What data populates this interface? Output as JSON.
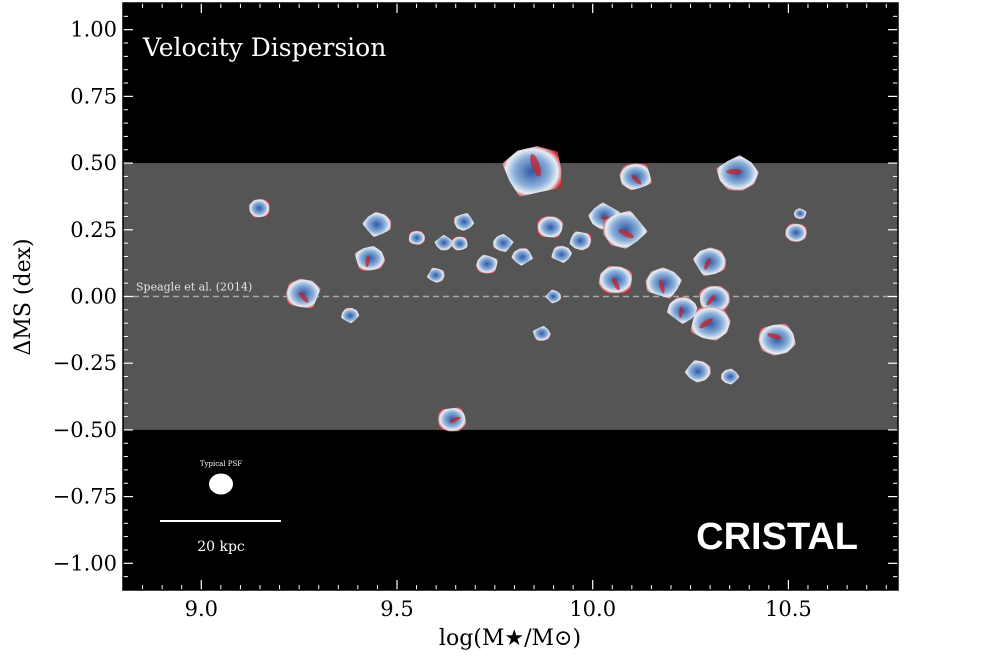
{
  "chart_data": {
    "type": "scatter",
    "title": "Velocity Dispersion",
    "xlabel": "log(M★/M⊙)",
    "ylabel": "ΔMS (dex)",
    "xlim": [
      8.8,
      10.78
    ],
    "ylim": [
      -1.1,
      1.1
    ],
    "xticks": [
      9.0,
      9.5,
      10.0,
      10.5
    ],
    "xtick_labels": [
      "9.0",
      "9.5",
      "10.0",
      "10.5"
    ],
    "yticks": [
      1.0,
      0.75,
      0.5,
      0.25,
      0.0,
      -0.25,
      -0.5,
      -0.75,
      -1.0
    ],
    "ytick_labels": [
      "1.00",
      "0.75",
      "0.50",
      "0.25",
      "0.00",
      "−0.25",
      "−0.50",
      "−0.75",
      "−1.00"
    ],
    "main_sequence_band": {
      "low": -0.5,
      "high": 0.5,
      "color": "#555555"
    },
    "reference_line": {
      "y": 0.0,
      "label": "Speagle et al. (2014)",
      "color": "#aaaaaa"
    },
    "psf_label": "Typical PSF",
    "scale_bar_label": "20 kpc",
    "brand_label": "CRISTAL",
    "colors": {
      "background": "#000000",
      "low": "#2c5aa8",
      "mid": "#e8eef5",
      "high": "#c4222a"
    },
    "galaxies": [
      {
        "x": 9.15,
        "y": 0.33,
        "size": 0.9
      },
      {
        "x": 9.26,
        "y": 0.01,
        "size": 1.4
      },
      {
        "x": 9.38,
        "y": -0.07,
        "size": 0.7
      },
      {
        "x": 9.45,
        "y": 0.27,
        "size": 1.1
      },
      {
        "x": 9.43,
        "y": 0.14,
        "size": 1.2
      },
      {
        "x": 9.55,
        "y": 0.22,
        "size": 0.7
      },
      {
        "x": 9.6,
        "y": 0.08,
        "size": 0.7
      },
      {
        "x": 9.62,
        "y": 0.2,
        "size": 0.7
      },
      {
        "x": 9.67,
        "y": 0.28,
        "size": 0.8
      },
      {
        "x": 9.66,
        "y": 0.2,
        "size": 0.7
      },
      {
        "x": 9.73,
        "y": 0.12,
        "size": 0.9
      },
      {
        "x": 9.77,
        "y": 0.2,
        "size": 0.8
      },
      {
        "x": 9.82,
        "y": 0.15,
        "size": 0.8
      },
      {
        "x": 9.85,
        "y": 0.47,
        "size": 2.4
      },
      {
        "x": 9.89,
        "y": 0.26,
        "size": 1.1
      },
      {
        "x": 9.92,
        "y": 0.16,
        "size": 0.8
      },
      {
        "x": 9.9,
        "y": 0.0,
        "size": 0.6
      },
      {
        "x": 9.87,
        "y": -0.14,
        "size": 0.7
      },
      {
        "x": 9.64,
        "y": -0.46,
        "size": 1.2
      },
      {
        "x": 9.97,
        "y": 0.21,
        "size": 0.9
      },
      {
        "x": 10.03,
        "y": 0.3,
        "size": 1.2
      },
      {
        "x": 10.08,
        "y": 0.25,
        "size": 1.7
      },
      {
        "x": 10.11,
        "y": 0.45,
        "size": 1.3
      },
      {
        "x": 10.06,
        "y": 0.06,
        "size": 1.4
      },
      {
        "x": 10.18,
        "y": 0.05,
        "size": 1.4
      },
      {
        "x": 10.23,
        "y": -0.05,
        "size": 1.2
      },
      {
        "x": 10.3,
        "y": 0.13,
        "size": 1.3
      },
      {
        "x": 10.31,
        "y": -0.01,
        "size": 1.3
      },
      {
        "x": 10.3,
        "y": -0.1,
        "size": 1.6
      },
      {
        "x": 10.27,
        "y": -0.28,
        "size": 1.0
      },
      {
        "x": 10.37,
        "y": 0.46,
        "size": 1.6
      },
      {
        "x": 10.47,
        "y": -0.16,
        "size": 1.5
      },
      {
        "x": 10.52,
        "y": 0.24,
        "size": 0.9
      },
      {
        "x": 10.53,
        "y": 0.31,
        "size": 0.5
      },
      {
        "x": 10.35,
        "y": -0.3,
        "size": 0.7
      }
    ]
  }
}
